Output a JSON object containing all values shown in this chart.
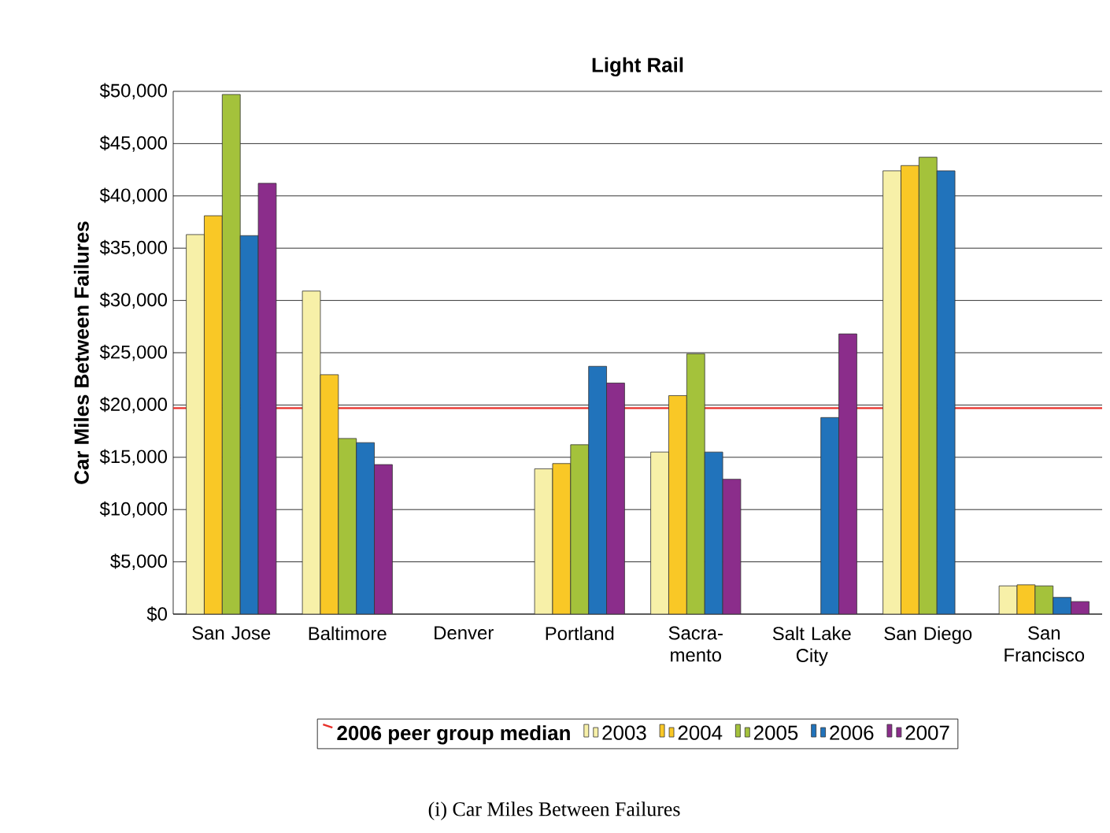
{
  "chart_data": {
    "type": "bar",
    "title": "Light Rail",
    "ylabel": "Car Miles Between Failures",
    "categories": [
      "San Jose",
      "Baltimore",
      "Denver",
      "Portland",
      "Sacra- mento",
      "Salt Lake City",
      "San Diego",
      "San Francisco"
    ],
    "series": [
      {
        "name": "2003",
        "color": "#f7f0a8",
        "values": [
          36300,
          30900,
          null,
          13900,
          15500,
          null,
          42400,
          2700
        ]
      },
      {
        "name": "2004",
        "color": "#f9c826",
        "values": [
          38100,
          22900,
          null,
          14400,
          20900,
          null,
          42900,
          2800
        ]
      },
      {
        "name": "2005",
        "color": "#a4c23b",
        "values": [
          49700,
          16800,
          null,
          16200,
          24900,
          null,
          43700,
          2700
        ]
      },
      {
        "name": "2006",
        "color": "#2173bb",
        "values": [
          36200,
          16400,
          null,
          23700,
          15500,
          18800,
          42400,
          1600
        ]
      },
      {
        "name": "2007",
        "color": "#8b2d8b",
        "values": [
          41200,
          14300,
          null,
          22100,
          12900,
          26800,
          null,
          1200
        ]
      }
    ],
    "ylim": [
      0,
      50000
    ],
    "yticks": [
      {
        "value": 0,
        "label": "$0"
      },
      {
        "value": 5000,
        "label": "$5,000"
      },
      {
        "value": 10000,
        "label": "$10,000"
      },
      {
        "value": 15000,
        "label": "$15,000"
      },
      {
        "value": 20000,
        "label": "$20,000"
      },
      {
        "value": 25000,
        "label": "$25,000"
      },
      {
        "value": 30000,
        "label": "$30,000"
      },
      {
        "value": 35000,
        "label": "$35,000"
      },
      {
        "value": 40000,
        "label": "$40,000"
      },
      {
        "value": 45000,
        "label": "$45,000"
      },
      {
        "value": 50000,
        "label": "$50,000"
      }
    ],
    "ref_lines": [
      {
        "axis": "y",
        "value": 19700,
        "label": "2006 peer group median",
        "color": "#e8302a"
      }
    ],
    "grid": "y",
    "legend": "bottom",
    "annotations": [
      "(i) Car Miles Between Failures"
    ]
  }
}
